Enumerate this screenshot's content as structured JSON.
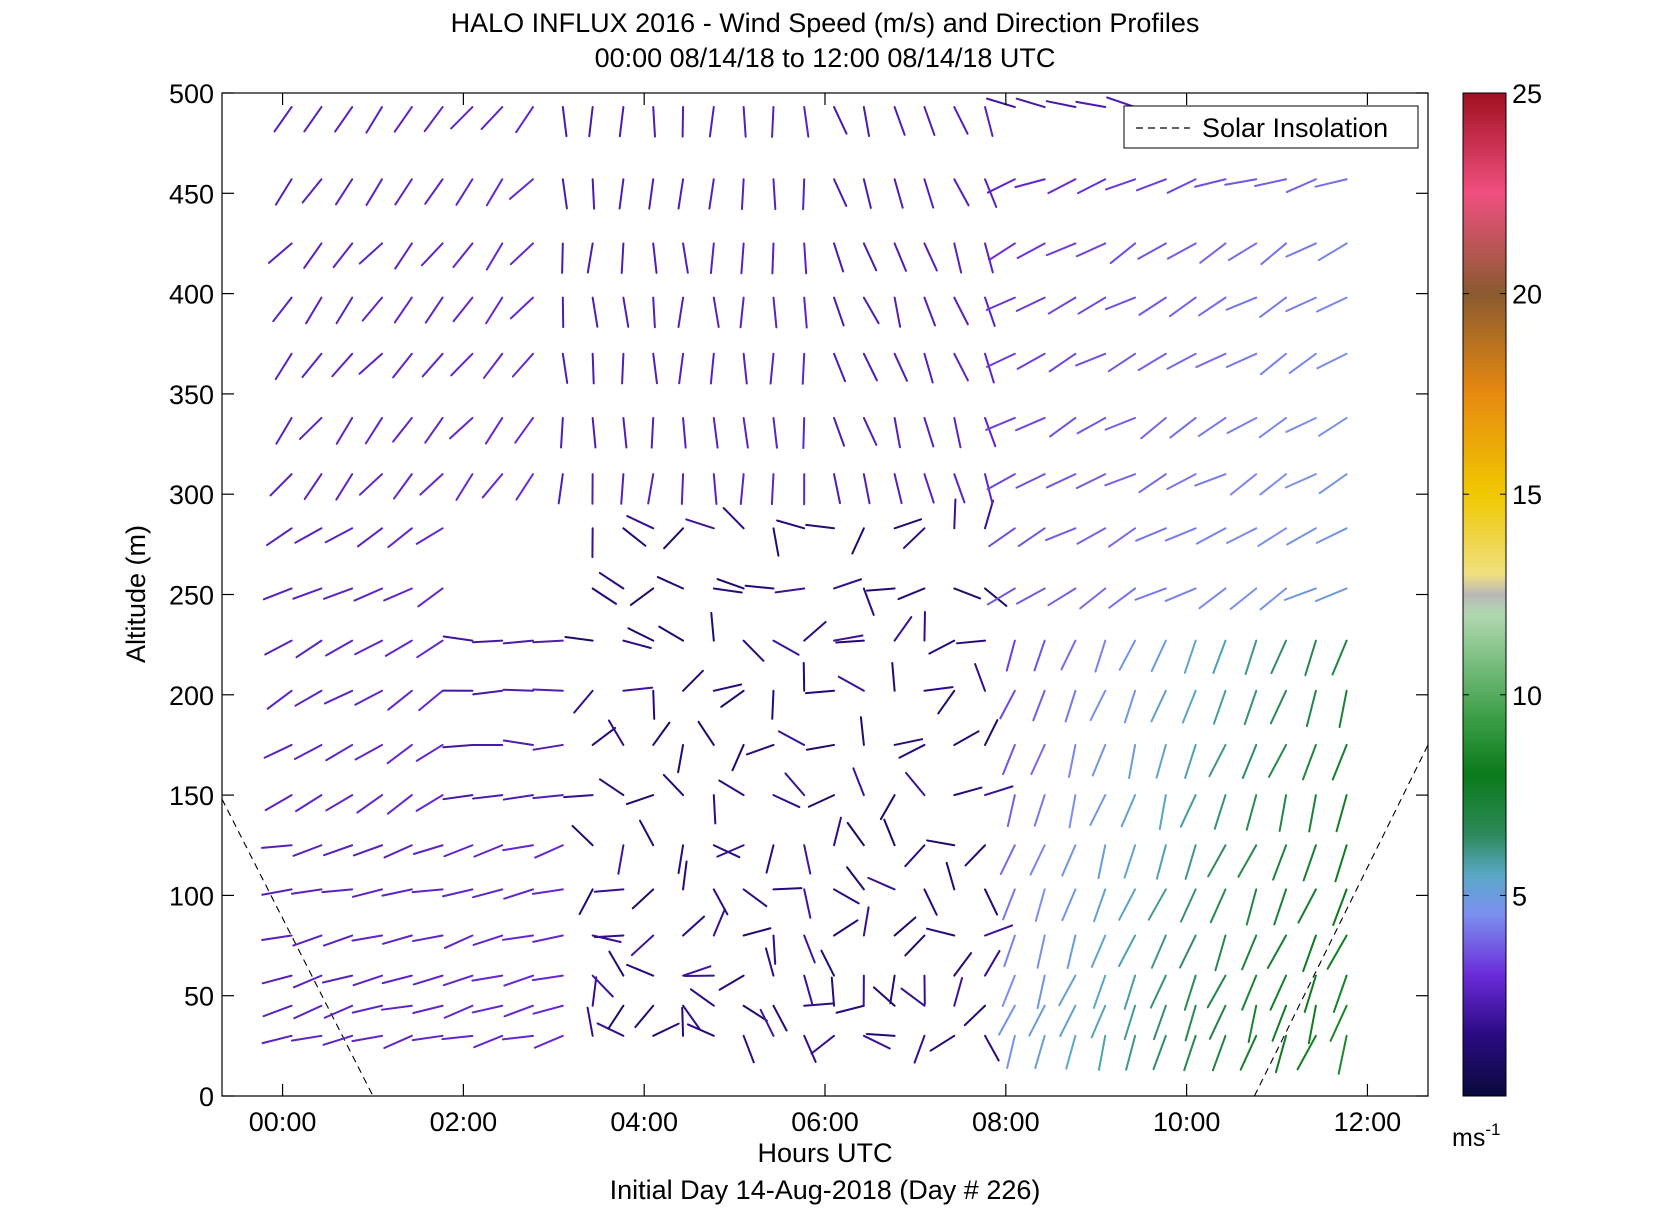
{
  "chart_data": {
    "type": "wind-barb-profile",
    "title": "HALO INFLUX 2016 - Wind Speed (m/s) and Direction Profiles",
    "subtitle": "00:00 08/14/18 to 12:00 08/14/18  UTC",
    "xlabel": "Hours UTC",
    "ylabel": "Altitude (m)",
    "footer": "Initial Day 14-Aug-2018 (Day # 226)",
    "xlim": [
      -0.67,
      12.67
    ],
    "ylim": [
      0,
      500
    ],
    "x_ticks": [
      0,
      2,
      4,
      6,
      8,
      10,
      12
    ],
    "x_tick_labels": [
      "00:00",
      "02:00",
      "04:00",
      "06:00",
      "08:00",
      "10:00",
      "12:00"
    ],
    "y_ticks": [
      0,
      50,
      100,
      150,
      200,
      250,
      300,
      350,
      400,
      450,
      500
    ],
    "y_tick_labels": [
      "0",
      "50",
      "100",
      "150",
      "200",
      "250",
      "300",
      "350",
      "400",
      "450",
      "500"
    ],
    "legend": {
      "label": "Solar Insolation",
      "placement": "top-right",
      "style": "dashed"
    },
    "colorbar": {
      "range": [
        0,
        25
      ],
      "ticks": [
        5,
        10,
        15,
        20,
        25
      ],
      "tick_labels": [
        "5",
        "10",
        "15",
        "20",
        "25"
      ],
      "unit_base": "ms",
      "unit_exp": "-1"
    },
    "times": [
      0.1,
      0.43,
      0.77,
      1.1,
      1.43,
      1.77,
      2.1,
      2.43,
      2.77,
      3.1,
      3.43,
      3.77,
      4.1,
      4.43,
      4.77,
      5.1,
      5.43,
      5.77,
      6.1,
      6.43,
      6.77,
      7.1,
      7.43,
      7.77,
      8.1,
      8.43,
      8.77,
      9.1,
      9.43,
      9.77,
      10.1,
      10.43,
      10.77,
      11.1,
      11.43,
      11.77
    ],
    "altitudes": [
      30,
      45,
      60,
      80,
      103,
      125,
      150,
      175,
      202,
      227,
      253,
      283,
      310,
      338,
      370,
      398,
      425,
      457,
      493
    ],
    "solar_insolation": {
      "left": [
        [
          -0.67,
          148
        ],
        [
          1.0,
          0
        ]
      ],
      "right": [
        [
          10.75,
          0
        ],
        [
          12.67,
          175
        ]
      ]
    },
    "wind_regions": [
      {
        "t": [
          0,
          3.3
        ],
        "z": [
          0,
          130
        ],
        "dir": 255,
        "spd": [
          2.5,
          3.0
        ]
      },
      {
        "t": [
          0,
          2.0
        ],
        "z": [
          130,
          300
        ],
        "dir": 240,
        "spd": [
          2.5,
          3.0
        ]
      },
      {
        "t": [
          0,
          3.0
        ],
        "z": [
          300,
          500
        ],
        "dir": 220,
        "spd": [
          2.5,
          3.0
        ]
      },
      {
        "t": [
          2.0,
          3.4
        ],
        "z": [
          130,
          240
        ],
        "dir": 270,
        "spd": [
          2.0,
          2.6
        ]
      },
      {
        "t": [
          3.0,
          6.0
        ],
        "z": [
          300,
          500
        ],
        "dir": 180,
        "spd": [
          2.2,
          2.8
        ]
      },
      {
        "t": [
          6.0,
          8.0
        ],
        "z": [
          300,
          500
        ],
        "dir": 160,
        "spd": [
          2.2,
          2.8
        ]
      },
      {
        "t": [
          3.3,
          8.0
        ],
        "z": [
          0,
          300
        ],
        "dir": "variable",
        "spd": [
          1.0,
          2.0
        ]
      },
      {
        "t": [
          8.0,
          12.0
        ],
        "z": [
          0,
          250
        ],
        "dir": 200,
        "spd": [
          3.0,
          9.0
        ]
      },
      {
        "t": [
          8.0,
          12.0
        ],
        "z": [
          250,
          430
        ],
        "dir": 240,
        "spd": [
          3.0,
          5.0
        ]
      },
      {
        "t": [
          8.0,
          12.0
        ],
        "z": [
          430,
          470
        ],
        "dir": 250,
        "spd": [
          2.5,
          4.5
        ]
      },
      {
        "t": [
          8.0,
          9.5
        ],
        "z": [
          470,
          500
        ],
        "dir": 290,
        "spd": [
          2.0,
          2.5
        ]
      }
    ]
  }
}
